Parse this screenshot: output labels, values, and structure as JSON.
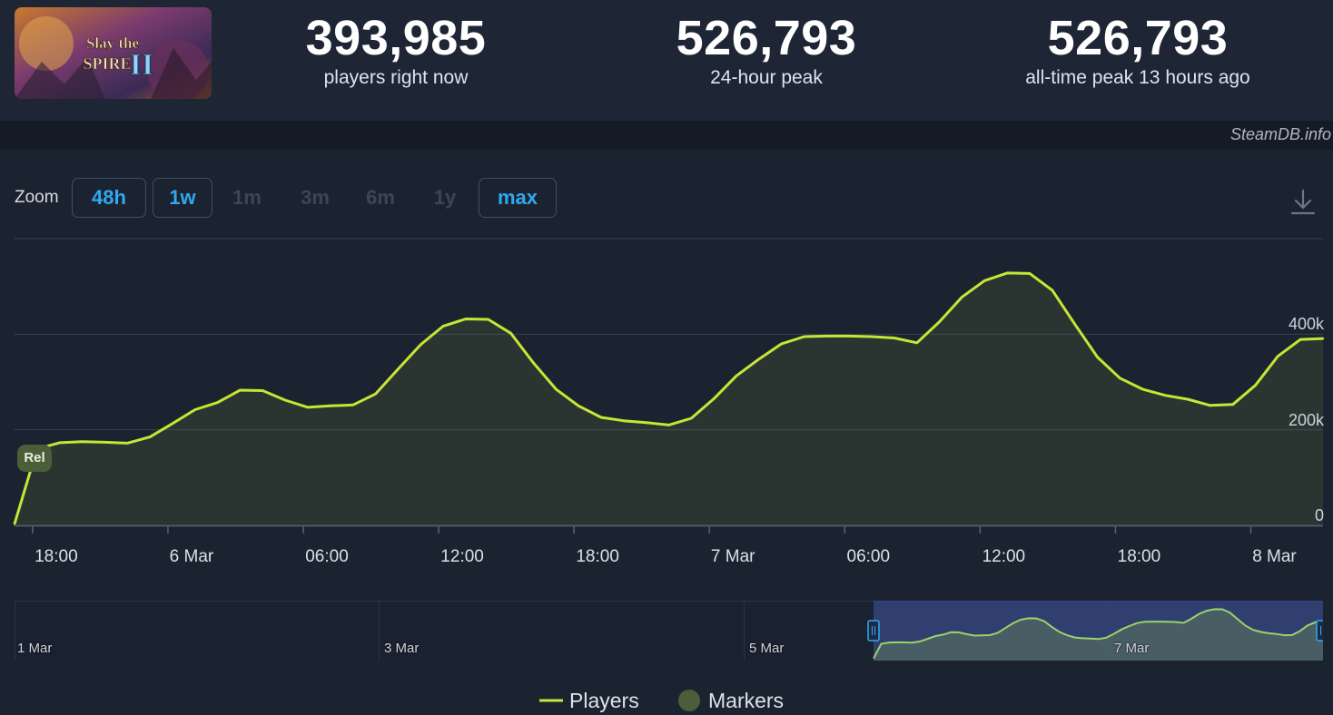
{
  "game": {
    "cover_title_line1": "Slay the",
    "cover_title_line2": "SPIRE",
    "cover_numeral": "II"
  },
  "stats": [
    {
      "value": "393,985",
      "label": "players right now"
    },
    {
      "value": "526,793",
      "label": "24-hour peak"
    },
    {
      "value": "526,793",
      "label": "all-time peak 13 hours ago"
    }
  ],
  "watermark": "SteamDB.info",
  "zoom": {
    "label": "Zoom",
    "buttons": [
      {
        "label": "48h",
        "state": "active"
      },
      {
        "label": "1w",
        "state": "active"
      },
      {
        "label": "1m",
        "state": "disabled"
      },
      {
        "label": "3m",
        "state": "disabled"
      },
      {
        "label": "6m",
        "state": "disabled"
      },
      {
        "label": "1y",
        "state": "disabled"
      },
      {
        "label": "max",
        "state": "active"
      }
    ]
  },
  "colors": {
    "line": "#c6e635",
    "accent": "#2fa9f0",
    "marker": "#4b5e3a",
    "navigator_selection": "#3a4a86"
  },
  "chart_data": {
    "type": "line",
    "x_unit": "hours since 5 Mar 12:00",
    "ylim": [
      0,
      600000
    ],
    "yticks": [
      {
        "value": 0,
        "label": "0"
      },
      {
        "value": 200000,
        "label": "200k"
      },
      {
        "value": 400000,
        "label": "400k"
      }
    ],
    "xticks": [
      {
        "x": 6,
        "label": "18:00"
      },
      {
        "x": 12,
        "label": "6 Mar"
      },
      {
        "x": 18,
        "label": "06:00"
      },
      {
        "x": 24,
        "label": "12:00"
      },
      {
        "x": 30,
        "label": "18:00"
      },
      {
        "x": 36,
        "label": "7 Mar"
      },
      {
        "x": 42,
        "label": "06:00"
      },
      {
        "x": 48,
        "label": "12:00"
      },
      {
        "x": 54,
        "label": "18:00"
      },
      {
        "x": 60,
        "label": "8 Mar"
      }
    ],
    "series": [
      {
        "name": "Players",
        "x": [
          5.2,
          6.2,
          7.2,
          8.2,
          9.2,
          10.2,
          11.2,
          12.2,
          13.2,
          14.2,
          15.2,
          16.2,
          17.2,
          18.2,
          19.2,
          20.2,
          21.2,
          22.2,
          23.2,
          24.2,
          25.2,
          26.2,
          27.2,
          28.2,
          29.2,
          30.2,
          31.2,
          32.2,
          33.2,
          34.2,
          35.2,
          36.2,
          37.2,
          38.2,
          39.2,
          40.2,
          41.2,
          42.2,
          43.2,
          44.2,
          45.2,
          46.2,
          47.2,
          48.2,
          49.2,
          50.2,
          51.2,
          52.2,
          53.2,
          54.2,
          55.2,
          56.2,
          57.2,
          58.2,
          59.2,
          60.2,
          61.2,
          62.2,
          63.2
        ],
        "y": [
          3000,
          160000,
          173000,
          175000,
          174000,
          172000,
          185000,
          213000,
          242000,
          257000,
          283000,
          282000,
          262000,
          247000,
          250000,
          252000,
          275000,
          327000,
          378000,
          417000,
          432000,
          431000,
          402000,
          340000,
          285000,
          250000,
          226000,
          219000,
          215000,
          210000,
          224000,
          265000,
          313000,
          348000,
          380000,
          395000,
          396000,
          396000,
          395000,
          392000,
          382000,
          426000,
          478000,
          512000,
          528000,
          527000,
          492000,
          421000,
          352000,
          308000,
          285000,
          272000,
          264000,
          251000,
          253000,
          293000,
          354000,
          389000,
          391000
        ]
      }
    ],
    "annotations": [
      {
        "x": 6.2,
        "label": "Rel"
      }
    ]
  },
  "navigator": {
    "labels": [
      "1 Mar",
      "3 Mar",
      "5 Mar",
      "7 Mar"
    ]
  },
  "legend": {
    "players_label": "Players",
    "markers_label": "Markers"
  }
}
